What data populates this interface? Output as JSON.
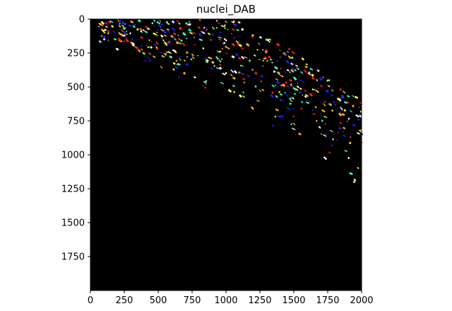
{
  "chart_data": {
    "type": "heatmap",
    "title": "nuclei_DAB",
    "xlabel": "",
    "ylabel": "",
    "xlim": [
      0,
      2000
    ],
    "ylim": [
      2000,
      0
    ],
    "x_ticks": [
      0,
      250,
      500,
      750,
      1000,
      1250,
      1500,
      1750,
      2000
    ],
    "y_ticks": [
      0,
      250,
      500,
      750,
      1000,
      1250,
      1500,
      1750
    ],
    "grid": false,
    "background_color": "#000000",
    "palette": [
      "#ffffff",
      "#ffff33",
      "#33ffcc",
      "#ff2020",
      "#2020ff",
      "#ffaa22"
    ],
    "density_band": {
      "description_free": true,
      "upper_edge": [
        [
          0,
          0
        ],
        [
          2000,
          0
        ]
      ],
      "lower_edge": [
        [
          0,
          150
        ],
        [
          500,
          400
        ],
        [
          1000,
          600
        ],
        [
          1500,
          880
        ],
        [
          2000,
          1250
        ]
      ]
    },
    "seed": 7,
    "label_count": 520
  }
}
